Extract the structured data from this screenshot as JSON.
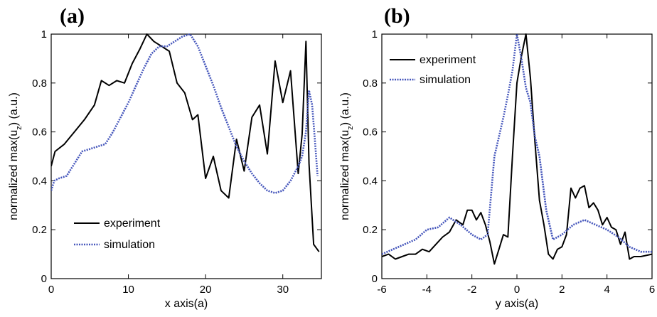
{
  "chart_data": [
    {
      "type": "line",
      "panel_label": "(a)",
      "xlabel": "x axis(a)",
      "ylabel": "normalized max(u_z) (a.u.)",
      "xlim": [
        0,
        35
      ],
      "ylim": [
        0,
        1
      ],
      "xticks": [
        "0",
        "10",
        "20",
        "30"
      ],
      "yticks": [
        "0",
        "0.2",
        "0.4",
        "0.6",
        "0.8",
        "1"
      ],
      "grid": false,
      "legend_position": "bottom-left",
      "series": [
        {
          "name": "experiment",
          "color": "#000000",
          "style": "solid",
          "x": [
            0,
            0.5,
            1.7,
            3,
            4.3,
            5.6,
            6.5,
            7.5,
            8.5,
            9.5,
            10.5,
            11.5,
            12.4,
            13.3,
            14.3,
            15.3,
            16.3,
            17.3,
            18.3,
            19,
            20,
            21,
            22,
            23,
            24,
            25,
            26,
            27,
            28,
            29,
            30,
            31,
            32,
            32.5,
            33,
            33.4,
            34,
            34.7
          ],
          "y": [
            0.46,
            0.52,
            0.55,
            0.6,
            0.65,
            0.71,
            0.81,
            0.79,
            0.81,
            0.8,
            0.88,
            0.94,
            1.0,
            0.97,
            0.95,
            0.93,
            0.8,
            0.76,
            0.65,
            0.67,
            0.41,
            0.5,
            0.36,
            0.33,
            0.57,
            0.44,
            0.66,
            0.71,
            0.51,
            0.89,
            0.72,
            0.85,
            0.43,
            0.59,
            0.97,
            0.47,
            0.14,
            0.11
          ]
        },
        {
          "name": "simulation",
          "color": "#4455bb",
          "style": "dotted",
          "x": [
            0,
            0.4,
            1,
            2,
            3,
            4,
            5,
            6,
            7,
            8,
            9,
            10,
            11,
            12,
            13,
            14,
            15,
            16,
            17,
            18,
            19,
            20,
            21,
            22,
            23,
            24,
            25,
            26,
            27,
            28,
            29,
            30,
            31,
            32,
            32.5,
            33,
            33.4,
            33.8,
            34.2,
            34.5
          ],
          "y": [
            0.36,
            0.4,
            0.41,
            0.42,
            0.47,
            0.52,
            0.53,
            0.54,
            0.55,
            0.6,
            0.66,
            0.72,
            0.79,
            0.86,
            0.92,
            0.95,
            0.95,
            0.97,
            0.99,
            1.0,
            0.95,
            0.87,
            0.79,
            0.7,
            0.62,
            0.54,
            0.48,
            0.43,
            0.39,
            0.36,
            0.35,
            0.36,
            0.4,
            0.46,
            0.5,
            0.6,
            0.77,
            0.71,
            0.55,
            0.42
          ]
        }
      ]
    },
    {
      "type": "line",
      "panel_label": "(b)",
      "xlabel": "y axis(a)",
      "ylabel": "normalized max(u_z) (a.u.)",
      "xlim": [
        -6,
        6
      ],
      "ylim": [
        0,
        1
      ],
      "xticks": [
        "-6",
        "-4",
        "-2",
        "0",
        "2",
        "4",
        "6"
      ],
      "yticks": [
        "0",
        "0.2",
        "0.4",
        "0.6",
        "0.8",
        "1"
      ],
      "grid": false,
      "legend_position": "top-left",
      "series": [
        {
          "name": "experiment",
          "color": "#000000",
          "style": "solid",
          "x": [
            -6,
            -5.7,
            -5.4,
            -5.1,
            -4.8,
            -4.5,
            -4.2,
            -3.9,
            -3.6,
            -3.3,
            -3.0,
            -2.7,
            -2.4,
            -2.2,
            -2.0,
            -1.8,
            -1.6,
            -1.4,
            -1.2,
            -1.0,
            -0.8,
            -0.6,
            -0.4,
            -0.2,
            0,
            0.2,
            0.4,
            0.6,
            0.8,
            1.0,
            1.2,
            1.4,
            1.6,
            1.8,
            2.0,
            2.2,
            2.4,
            2.6,
            2.8,
            3.0,
            3.2,
            3.4,
            3.6,
            3.8,
            4.0,
            4.2,
            4.4,
            4.6,
            4.8,
            5.0,
            5.2,
            5.5,
            6.0
          ],
          "y": [
            0.09,
            0.1,
            0.08,
            0.09,
            0.1,
            0.1,
            0.12,
            0.11,
            0.14,
            0.17,
            0.19,
            0.24,
            0.22,
            0.28,
            0.28,
            0.24,
            0.27,
            0.22,
            0.15,
            0.06,
            0.12,
            0.18,
            0.17,
            0.5,
            0.8,
            0.91,
            1.0,
            0.82,
            0.56,
            0.32,
            0.22,
            0.1,
            0.08,
            0.12,
            0.13,
            0.18,
            0.37,
            0.33,
            0.37,
            0.38,
            0.29,
            0.31,
            0.28,
            0.22,
            0.25,
            0.21,
            0.2,
            0.14,
            0.19,
            0.08,
            0.09,
            0.09,
            0.1
          ]
        },
        {
          "name": "simulation",
          "color": "#4455bb",
          "style": "dotted",
          "x": [
            -6,
            -5.5,
            -5.0,
            -4.5,
            -4.0,
            -3.5,
            -3.0,
            -2.5,
            -2.0,
            -1.6,
            -1.3,
            -1.0,
            -0.8,
            -0.6,
            -0.4,
            -0.2,
            0,
            0.2,
            0.4,
            0.6,
            0.8,
            1.0,
            1.3,
            1.6,
            2.0,
            2.5,
            3.0,
            3.5,
            4.0,
            4.5,
            5.0,
            5.5,
            6.0
          ],
          "y": [
            0.1,
            0.12,
            0.14,
            0.16,
            0.2,
            0.21,
            0.25,
            0.22,
            0.18,
            0.16,
            0.18,
            0.5,
            0.58,
            0.66,
            0.75,
            0.85,
            1.0,
            0.9,
            0.78,
            0.72,
            0.58,
            0.5,
            0.28,
            0.16,
            0.18,
            0.22,
            0.24,
            0.22,
            0.2,
            0.17,
            0.13,
            0.11,
            0.11
          ]
        }
      ]
    }
  ]
}
